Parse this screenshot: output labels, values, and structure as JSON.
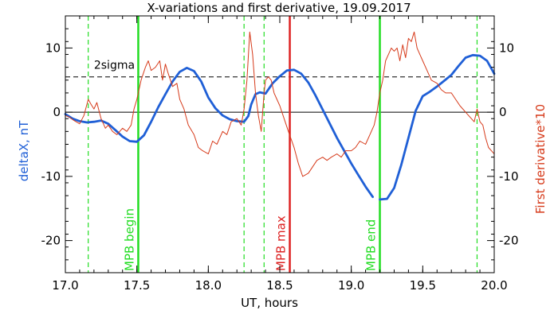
{
  "chart_data": {
    "type": "line",
    "title": "X-variations and first derivative, 19.09.2017",
    "xlabel": "UT, hours",
    "ylabel": "deltaX, nT",
    "ylabel_right": "First derivative*10",
    "xlim": [
      17.0,
      20.0
    ],
    "ylim": [
      -25,
      15
    ],
    "x_ticks": [
      17.0,
      17.5,
      18.0,
      18.5,
      19.0,
      19.5,
      20.0
    ],
    "x_tick_labels": [
      "17.0",
      "17.5",
      "18.0",
      "18.5",
      "19.0",
      "19.5",
      "20.0"
    ],
    "y_ticks": [
      -20,
      -10,
      0,
      10
    ],
    "y_tick_labels": [
      "-20",
      "-10",
      "0",
      "10"
    ],
    "grid": false,
    "colors": {
      "deltaX": "#1f5fd6",
      "derivative": "#d63a1a",
      "mpb": "#22dd22",
      "mpb_max": "#dd2222",
      "reference": "#000000"
    },
    "series": [
      {
        "name": "deltaX, nT",
        "axis": "left",
        "style": "thick",
        "segments": [
          {
            "x": [
              17.0,
              17.05,
              17.1,
              17.15,
              17.2,
              17.25,
              17.3,
              17.35,
              17.4,
              17.45,
              17.5,
              17.55,
              17.6,
              17.65,
              17.7,
              17.75,
              17.8,
              17.85,
              17.9,
              17.95,
              18.0,
              18.05,
              18.1,
              18.15,
              18.2,
              18.25,
              18.28,
              18.3,
              18.33,
              18.36,
              18.4,
              18.45,
              18.5,
              18.55,
              18.6,
              18.65,
              18.7,
              18.75,
              18.8,
              18.85,
              18.9,
              18.95,
              19.0,
              19.05,
              19.1,
              19.15
            ],
            "y": [
              -0.3,
              -1.0,
              -1.4,
              -1.6,
              -1.5,
              -1.3,
              -1.8,
              -2.8,
              -3.8,
              -4.5,
              -4.6,
              -3.6,
              -1.5,
              0.8,
              2.8,
              4.8,
              6.3,
              6.9,
              6.4,
              4.8,
              2.3,
              0.6,
              -0.5,
              -1.1,
              -1.4,
              -1.5,
              -0.6,
              1.2,
              2.8,
              3.1,
              2.9,
              4.5,
              5.6,
              6.5,
              6.6,
              6.0,
              4.6,
              2.6,
              0.4,
              -1.8,
              -4.0,
              -6.0,
              -8.0,
              -9.8,
              -11.6,
              -13.2
            ]
          },
          {
            "x": [
              19.2,
              19.25,
              19.3,
              19.35,
              19.4,
              19.45,
              19.5,
              19.55,
              19.6,
              19.65,
              19.7,
              19.75,
              19.8,
              19.85,
              19.9,
              19.95,
              20.0
            ],
            "y": [
              -13.6,
              -13.5,
              -11.8,
              -8.2,
              -4.0,
              0.2,
              2.5,
              3.2,
              4.0,
              4.9,
              5.8,
              7.2,
              8.5,
              8.9,
              8.8,
              8.0,
              6.0
            ]
          }
        ]
      },
      {
        "name": "First derivative*10",
        "axis": "right",
        "style": "thin",
        "segments": [
          {
            "x": [
              17.0,
              17.03,
              17.06,
              17.1,
              17.13,
              17.16,
              17.18,
              17.2,
              17.22,
              17.25,
              17.28,
              17.3,
              17.33,
              17.36,
              17.4,
              17.43,
              17.46,
              17.48,
              17.5,
              17.53,
              17.56,
              17.58,
              17.6,
              17.63,
              17.66,
              17.68,
              17.7,
              17.72,
              17.75,
              17.78,
              17.8,
              17.83,
              17.86,
              17.9,
              17.93,
              17.96,
              18.0,
              18.03,
              18.06,
              18.1,
              18.13,
              18.16,
              18.2,
              18.23,
              18.25,
              18.27,
              18.29,
              18.31,
              18.33,
              18.35,
              18.37,
              18.39,
              18.4,
              18.42,
              18.44,
              18.46,
              18.48,
              18.5,
              18.53,
              18.56,
              18.6,
              18.63,
              18.66,
              18.7,
              18.73,
              18.76,
              18.8,
              18.83,
              18.86,
              18.9,
              18.93,
              18.96,
              19.0,
              19.03,
              19.06,
              19.1,
              19.13,
              19.16,
              19.18,
              19.2,
              19.22,
              19.24,
              19.26,
              19.28,
              19.3,
              19.32,
              19.34,
              19.36,
              19.38,
              19.4,
              19.42,
              19.44,
              19.46,
              19.48,
              19.5,
              19.53,
              19.56,
              19.6,
              19.63,
              19.66,
              19.7,
              19.73,
              19.76,
              19.8,
              19.82,
              19.84,
              19.86,
              19.88,
              19.9,
              19.92,
              19.94,
              19.96,
              19.98,
              20.0
            ],
            "y": [
              -0.5,
              -0.8,
              -1.3,
              -1.8,
              -0.5,
              2.0,
              1.2,
              0.5,
              1.5,
              -1.0,
              -2.5,
              -2.0,
              -3.0,
              -3.5,
              -2.5,
              -3.0,
              -2.0,
              0.5,
              2.0,
              5.0,
              7.0,
              8.0,
              6.5,
              7.0,
              8.0,
              5.0,
              7.5,
              6.0,
              4.0,
              4.5,
              2.0,
              0.5,
              -2.0,
              -3.5,
              -5.5,
              -6.0,
              -6.5,
              -4.5,
              -5.0,
              -3.0,
              -3.5,
              -1.5,
              -1.0,
              -2.0,
              0.5,
              5.0,
              12.5,
              9.0,
              3.0,
              -0.5,
              -3.0,
              3.0,
              5.0,
              5.5,
              5.0,
              3.0,
              2.0,
              1.0,
              -1.0,
              -3.0,
              -5.5,
              -8.0,
              -10.0,
              -9.5,
              -8.5,
              -7.5,
              -7.0,
              -7.5,
              -7.0,
              -6.5,
              -7.0,
              -6.0,
              -6.0,
              -5.5,
              -4.5,
              -5.0,
              -3.5,
              -2.0,
              0.0,
              3.0,
              5.0,
              8.0,
              9.0,
              10.0,
              9.5,
              10.0,
              8.0,
              10.5,
              8.5,
              11.5,
              11.0,
              12.5,
              10.0,
              9.0,
              8.0,
              6.5,
              5.0,
              4.5,
              3.5,
              3.0,
              3.0,
              2.0,
              1.0,
              0.0,
              -0.5,
              -1.0,
              -1.5,
              0.5,
              -1.5,
              -2.0,
              -4.0,
              -5.5,
              -6.0,
              -6.5
            ]
          }
        ]
      }
    ],
    "reference_lines": [
      {
        "label": "2sigma",
        "axis": "left",
        "y": 5.5,
        "style": "dashed"
      },
      {
        "label": "",
        "axis": "left",
        "y": 0,
        "style": "solid"
      }
    ],
    "event_lines": [
      {
        "label": "",
        "x": 17.16,
        "style": "dashed",
        "color": "#22dd22"
      },
      {
        "label": "MPB begin",
        "x": 17.51,
        "style": "solid",
        "color": "#22dd22"
      },
      {
        "label": "",
        "x": 18.25,
        "style": "dashed",
        "color": "#22dd22"
      },
      {
        "label": "",
        "x": 18.39,
        "style": "dashed",
        "color": "#22dd22"
      },
      {
        "label": "MPB max",
        "x": 18.57,
        "style": "solid",
        "color": "#dd2222"
      },
      {
        "label": "MPB end",
        "x": 19.2,
        "style": "solid",
        "color": "#22dd22"
      },
      {
        "label": "",
        "x": 19.88,
        "style": "dashed",
        "color": "#22dd22"
      }
    ]
  }
}
